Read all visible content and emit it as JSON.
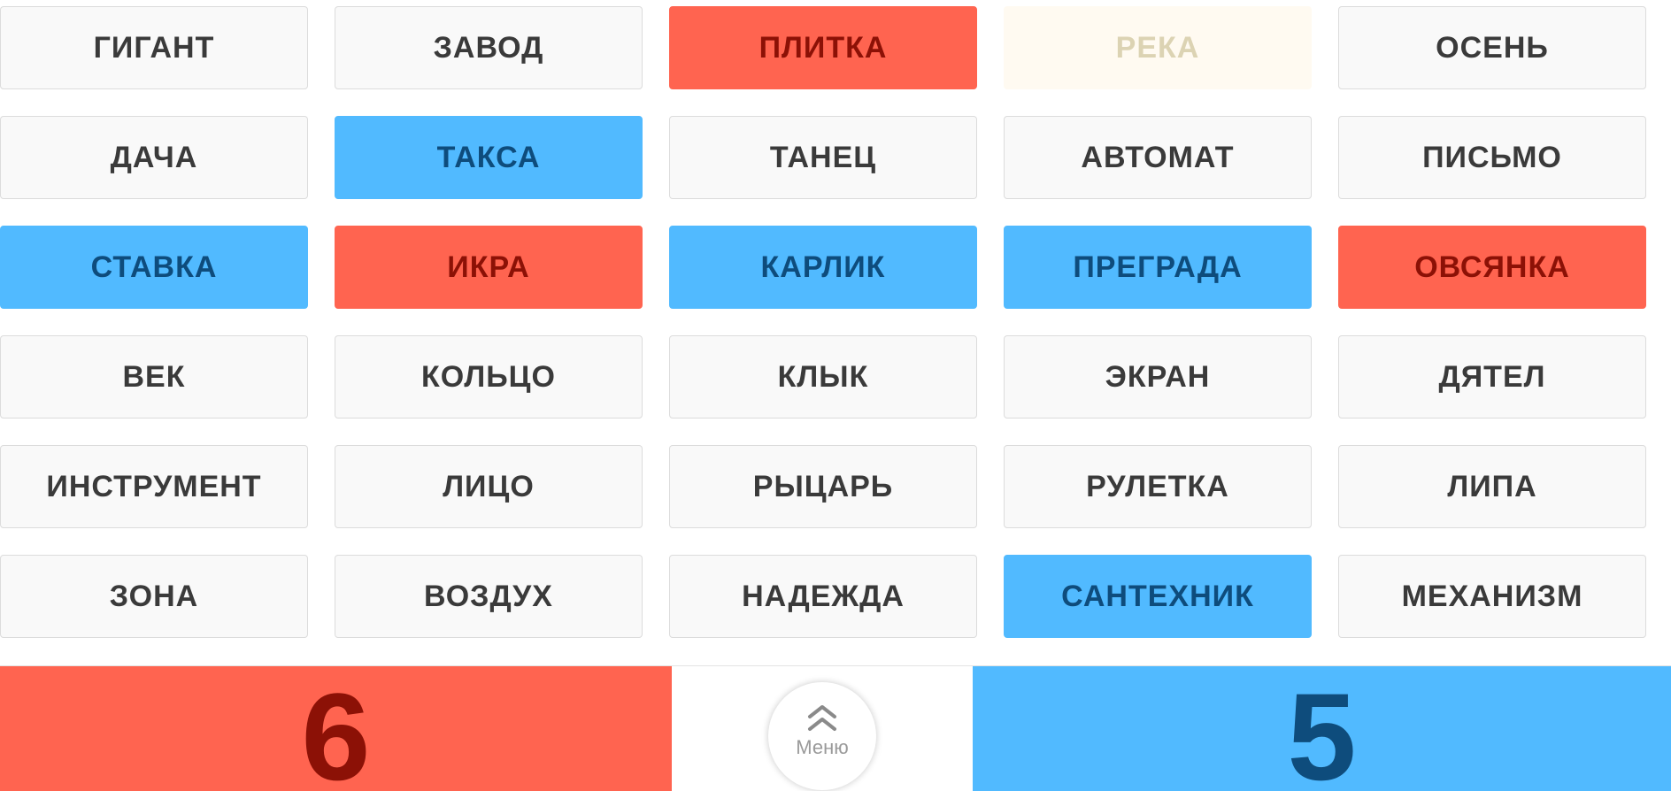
{
  "cards": [
    {
      "word": "ГИГАНТ",
      "team": "neutral"
    },
    {
      "word": "ЗАВОД",
      "team": "neutral"
    },
    {
      "word": "ПЛИТКА",
      "team": "red"
    },
    {
      "word": "РЕКА",
      "team": "assassin"
    },
    {
      "word": "ОСЕНЬ",
      "team": "neutral"
    },
    {
      "word": "ДАЧА",
      "team": "neutral"
    },
    {
      "word": "ТАКСА",
      "team": "blue"
    },
    {
      "word": "ТАНЕЦ",
      "team": "neutral"
    },
    {
      "word": "АВТОМАТ",
      "team": "neutral"
    },
    {
      "word": "ПИСЬМО",
      "team": "neutral"
    },
    {
      "word": "СТАВКА",
      "team": "blue"
    },
    {
      "word": "ИКРА",
      "team": "red"
    },
    {
      "word": "КАРЛИК",
      "team": "blue"
    },
    {
      "word": "ПРЕГРАДА",
      "team": "blue"
    },
    {
      "word": "ОВСЯНКА",
      "team": "red"
    },
    {
      "word": "ВЕК",
      "team": "neutral"
    },
    {
      "word": "КОЛЬЦО",
      "team": "neutral"
    },
    {
      "word": "КЛЫК",
      "team": "neutral"
    },
    {
      "word": "ЭКРАН",
      "team": "neutral"
    },
    {
      "word": "ДЯТЕЛ",
      "team": "neutral"
    },
    {
      "word": "ИНСТРУМЕНТ",
      "team": "neutral"
    },
    {
      "word": "ЛИЦО",
      "team": "neutral"
    },
    {
      "word": "РЫЦАРЬ",
      "team": "neutral"
    },
    {
      "word": "РУЛЕТКА",
      "team": "neutral"
    },
    {
      "word": "ЛИПА",
      "team": "neutral"
    },
    {
      "word": "ЗОНА",
      "team": "neutral"
    },
    {
      "word": "ВОЗДУХ",
      "team": "neutral"
    },
    {
      "word": "НАДЕЖДА",
      "team": "neutral"
    },
    {
      "word": "САНТЕХНИК",
      "team": "blue"
    },
    {
      "word": "МЕХАНИЗМ",
      "team": "neutral"
    }
  ],
  "score": {
    "red": "6",
    "blue": "5"
  },
  "menu": {
    "label": "Меню",
    "icon": "double-chevron-up-icon"
  },
  "colors": {
    "red": "#ff6450",
    "red_text": "#8c1106",
    "blue": "#51baff",
    "blue_text": "#0e4c7c",
    "neutral": "#f9f9f9",
    "neutral_text": "#3a3a3a",
    "assassin": "#fffaf1",
    "assassin_text": "#dcd3b3"
  }
}
